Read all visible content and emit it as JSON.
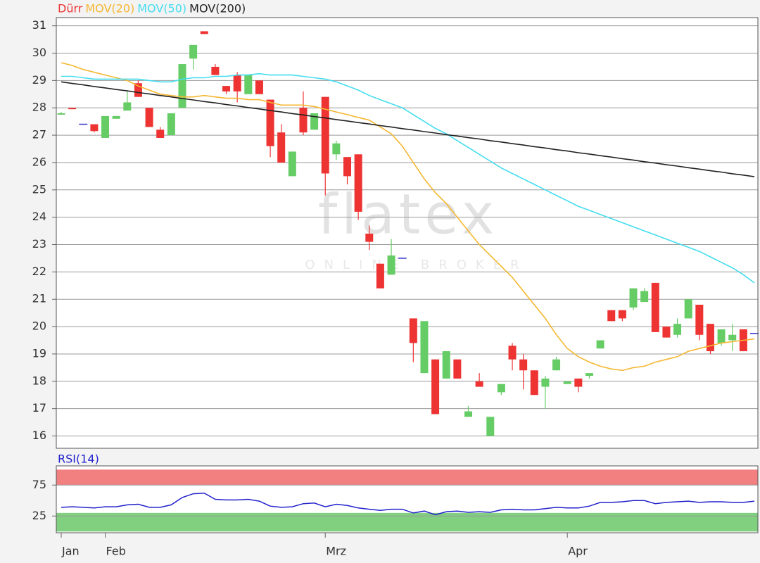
{
  "chart_data": [
    {
      "type": "candlestick",
      "categories": [
        "Jan",
        null,
        null,
        null,
        "Feb",
        null,
        null,
        null,
        null,
        null,
        null,
        null,
        null,
        null,
        null,
        null,
        null,
        null,
        null,
        null,
        null,
        null,
        null,
        null,
        "Mrz",
        null,
        null,
        null,
        null,
        null,
        null,
        null,
        null,
        null,
        null,
        null,
        null,
        null,
        null,
        null,
        null,
        null,
        null,
        null,
        null,
        null,
        "Apr",
        null,
        null,
        null,
        null,
        null,
        null,
        null,
        null,
        null,
        null,
        null,
        null,
        null,
        null,
        null,
        null,
        null
      ],
      "ohlc": {
        "name": "Dürr",
        "color": "#ee3333",
        "up_color": "#66cc66",
        "flat_color": "#3333cc",
        "open": [
          27.75,
          28.0,
          27.4,
          27.4,
          26.9,
          27.6,
          27.9,
          28.9,
          28.0,
          27.2,
          27.0,
          28.0,
          29.8,
          30.8,
          29.5,
          28.8,
          29.2,
          28.5,
          29.0,
          28.3,
          27.1,
          25.5,
          28.0,
          27.2,
          28.4,
          26.3,
          26.2,
          26.3,
          23.4,
          22.3,
          21.9,
          22.5,
          20.3,
          18.3,
          18.8,
          18.1,
          18.8,
          16.7,
          18.0,
          16.0,
          17.6,
          19.3,
          18.8,
          18.4,
          17.8,
          18.4,
          17.9,
          18.1,
          18.2,
          19.2,
          20.6,
          20.6,
          20.7,
          20.9,
          21.6,
          20.0,
          19.7,
          20.3,
          20.8,
          20.1,
          19.4,
          19.5,
          19.9,
          19.75
        ],
        "high": [
          27.85,
          28.0,
          27.4,
          27.4,
          27.7,
          27.7,
          28.6,
          29.0,
          28.0,
          27.3,
          27.8,
          29.6,
          30.3,
          30.8,
          29.6,
          28.8,
          29.3,
          29.2,
          29.0,
          28.3,
          27.4,
          26.4,
          28.6,
          27.8,
          28.4,
          26.8,
          26.2,
          26.3,
          23.7,
          22.3,
          23.2,
          22.5,
          20.3,
          20.2,
          18.8,
          19.1,
          18.8,
          17.1,
          18.3,
          16.7,
          17.9,
          19.4,
          19.0,
          18.4,
          18.2,
          18.9,
          18.0,
          18.1,
          18.3,
          19.5,
          20.6,
          20.6,
          21.4,
          21.4,
          21.6,
          20.0,
          20.3,
          21.0,
          20.8,
          20.1,
          19.9,
          20.1,
          19.9,
          19.75
        ],
        "low": [
          27.75,
          27.95,
          27.4,
          27.1,
          26.9,
          27.6,
          27.9,
          28.4,
          27.3,
          26.9,
          27.0,
          28.0,
          29.4,
          30.7,
          29.2,
          28.5,
          28.2,
          28.5,
          28.5,
          26.2,
          26.0,
          25.5,
          27.0,
          27.2,
          24.8,
          26.1,
          25.2,
          23.9,
          22.8,
          21.4,
          21.9,
          22.5,
          18.7,
          18.3,
          16.8,
          18.1,
          18.1,
          16.7,
          17.8,
          16.0,
          17.5,
          18.4,
          17.7,
          17.5,
          17.0,
          18.4,
          17.9,
          17.6,
          18.1,
          19.2,
          20.2,
          20.2,
          20.6,
          20.9,
          19.8,
          19.6,
          19.6,
          20.3,
          19.5,
          19.0,
          19.3,
          19.1,
          19.1,
          19.75
        ],
        "close": [
          27.8,
          27.95,
          27.4,
          27.15,
          27.7,
          27.7,
          28.2,
          28.4,
          27.3,
          26.9,
          27.8,
          29.6,
          30.3,
          30.7,
          29.2,
          28.6,
          28.6,
          29.2,
          28.5,
          26.6,
          26.0,
          26.4,
          27.1,
          27.8,
          25.6,
          26.7,
          25.5,
          24.2,
          23.1,
          21.4,
          22.6,
          22.5,
          19.4,
          20.2,
          16.8,
          19.1,
          18.1,
          16.9,
          17.8,
          16.7,
          17.9,
          18.8,
          18.4,
          17.5,
          18.1,
          18.8,
          18.0,
          17.8,
          18.3,
          19.5,
          20.2,
          20.3,
          21.4,
          21.3,
          19.8,
          19.6,
          20.1,
          21.0,
          19.7,
          19.1,
          19.9,
          19.7,
          19.1,
          19.75
        ]
      },
      "series": [
        {
          "name": "MOV(20)",
          "color": "#f5b731",
          "values": [
            29.65,
            29.55,
            29.4,
            29.3,
            29.2,
            29.1,
            29.0,
            28.8,
            28.65,
            28.5,
            28.45,
            28.4,
            28.4,
            28.45,
            28.4,
            28.35,
            28.35,
            28.3,
            28.3,
            28.2,
            28.1,
            28.1,
            28.1,
            28.05,
            27.95,
            27.85,
            27.75,
            27.65,
            27.55,
            27.3,
            27.05,
            26.6,
            26.0,
            25.4,
            24.9,
            24.5,
            24.0,
            23.5,
            23.0,
            22.6,
            22.2,
            21.8,
            21.3,
            20.8,
            20.3,
            19.7,
            19.2,
            18.9,
            18.7,
            18.55,
            18.45,
            18.4,
            18.5,
            18.55,
            18.7,
            18.8,
            18.9,
            19.1,
            19.2,
            19.3,
            19.4,
            19.45,
            19.5,
            19.55
          ]
        },
        {
          "name": "MOV(50)",
          "color": "#44ddee",
          "values": [
            29.15,
            29.15,
            29.1,
            29.05,
            29.05,
            29.05,
            29.05,
            29.05,
            29.0,
            28.95,
            28.95,
            29.05,
            29.1,
            29.1,
            29.15,
            29.15,
            29.2,
            29.2,
            29.25,
            29.2,
            29.2,
            29.2,
            29.15,
            29.1,
            29.05,
            28.95,
            28.8,
            28.65,
            28.45,
            28.3,
            28.15,
            28.0,
            27.75,
            27.5,
            27.25,
            27.05,
            26.8,
            26.55,
            26.3,
            26.05,
            25.8,
            25.6,
            25.4,
            25.2,
            25.0,
            24.8,
            24.6,
            24.4,
            24.25,
            24.1,
            23.95,
            23.8,
            23.65,
            23.5,
            23.35,
            23.2,
            23.05,
            22.9,
            22.75,
            22.55,
            22.35,
            22.15,
            21.9,
            21.6
          ]
        },
        {
          "name": "MOV(200)",
          "color": "#222222",
          "values": [
            28.95,
            28.89,
            28.84,
            28.78,
            28.73,
            28.67,
            28.62,
            28.56,
            28.51,
            28.45,
            28.4,
            28.34,
            28.29,
            28.23,
            28.18,
            28.12,
            28.07,
            28.01,
            27.96,
            27.9,
            27.85,
            27.79,
            27.74,
            27.68,
            27.63,
            27.57,
            27.52,
            27.46,
            27.41,
            27.35,
            27.3,
            27.24,
            27.19,
            27.13,
            27.08,
            27.02,
            26.97,
            26.91,
            26.86,
            26.8,
            26.75,
            26.69,
            26.64,
            26.58,
            26.53,
            26.47,
            26.42,
            26.36,
            26.31,
            26.25,
            26.2,
            26.14,
            26.09,
            26.03,
            25.98,
            25.92,
            25.87,
            25.81,
            25.76,
            25.7,
            25.65,
            25.59,
            25.54,
            25.48
          ]
        }
      ],
      "ylim": [
        15.55,
        31.3
      ],
      "yticks": [
        16,
        17,
        18,
        19,
        20,
        21,
        22,
        23,
        24,
        25,
        26,
        27,
        28,
        29,
        30,
        31
      ],
      "grid": true,
      "watermark": {
        "logo": "flatex",
        "tagline": "ONLINE BROKER"
      }
    },
    {
      "type": "line",
      "title": "RSI(14)",
      "color": "#2222cc",
      "values": [
        39,
        40,
        39,
        38,
        40,
        40,
        43,
        44,
        39,
        39,
        43,
        55,
        61,
        62,
        52,
        51,
        51,
        52,
        49,
        41,
        39,
        40,
        45,
        46,
        40,
        44,
        42,
        38,
        36,
        34,
        36,
        36,
        30,
        33,
        27,
        32,
        33,
        31,
        32,
        31,
        35,
        36,
        35,
        35,
        37,
        39,
        38,
        38,
        41,
        47,
        47,
        48,
        50,
        50,
        45,
        47,
        48,
        49,
        47,
        48,
        48,
        47,
        47,
        49
      ],
      "zones": [
        {
          "from": 75,
          "to": 100,
          "color": "#f28080"
        },
        {
          "from": 0,
          "to": 30,
          "color": "#80d080"
        }
      ],
      "ylim": [
        -2,
        106
      ],
      "yticks": [
        25,
        75
      ],
      "grid": true
    }
  ]
}
